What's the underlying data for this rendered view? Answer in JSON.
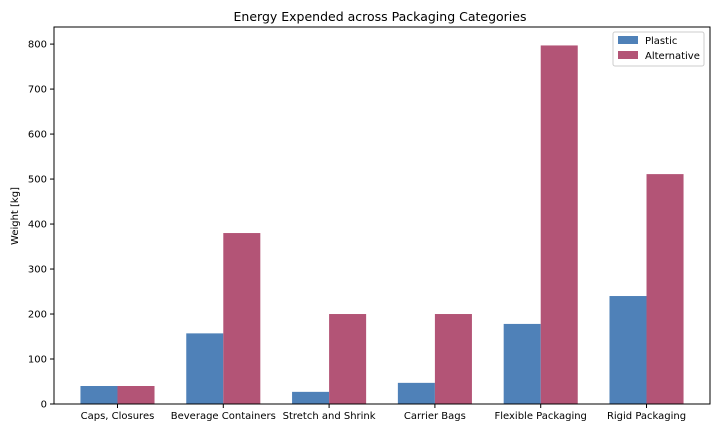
{
  "chart_data": {
    "type": "bar",
    "title": "Energy Expended across Packaging Categories",
    "xlabel": "",
    "ylabel": "Weight [kg]",
    "categories": [
      "Caps, Closures",
      "Beverage Containers",
      "Stretch and Shrink",
      "Carrier Bags",
      "Flexible Packaging",
      "Rigid Packaging"
    ],
    "series": [
      {
        "name": "Plastic",
        "color": "#4f81b8",
        "values": [
          40,
          157,
          27,
          47,
          178,
          240
        ]
      },
      {
        "name": "Alternative",
        "color": "#b35476",
        "values": [
          40,
          380,
          200,
          200,
          797,
          511
        ]
      }
    ],
    "ylim": [
      0,
      838
    ],
    "yticks": [
      0,
      100,
      200,
      300,
      400,
      500,
      600,
      700,
      800
    ],
    "grid": false,
    "legend_position": "top-right"
  }
}
